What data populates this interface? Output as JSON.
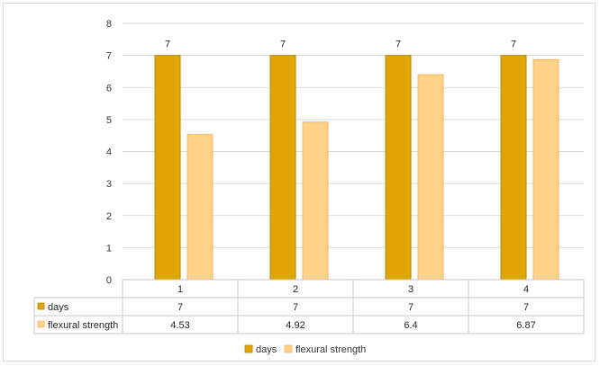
{
  "chart_data": {
    "type": "bar",
    "categories": [
      "1",
      "2",
      "3",
      "4"
    ],
    "series": [
      {
        "name": "days",
        "values": [
          7,
          7,
          7,
          7
        ],
        "color": "#E0A500",
        "border": "#B8860B",
        "value_labels": [
          "7",
          "7",
          "7",
          "7"
        ]
      },
      {
        "name": "flexural strength",
        "values": [
          4.53,
          4.92,
          6.4,
          6.87
        ],
        "color": "#FFD28A",
        "border": "#F0B860"
      }
    ],
    "table": {
      "rows": [
        {
          "label": "days",
          "cells": [
            "7",
            "7",
            "7",
            "7"
          ]
        },
        {
          "label": "flexural strength",
          "cells": [
            "4.53",
            "4.92",
            "6.4",
            "6.87"
          ]
        }
      ]
    },
    "ylim": [
      0,
      8
    ],
    "yticks": [
      "0",
      "1",
      "2",
      "3",
      "4",
      "5",
      "6",
      "7",
      "8"
    ],
    "grid": true,
    "legend_position": "bottom"
  }
}
